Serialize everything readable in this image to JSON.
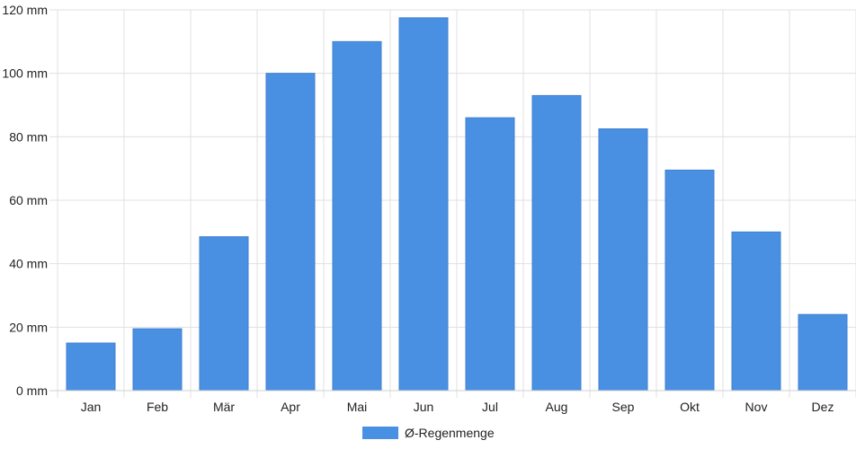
{
  "chart_data": {
    "type": "bar",
    "categories": [
      "Jan",
      "Feb",
      "Mär",
      "Apr",
      "Mai",
      "Jun",
      "Jul",
      "Aug",
      "Sep",
      "Okt",
      "Nov",
      "Dez"
    ],
    "series": [
      {
        "name": "Ø-Regenmenge",
        "values": [
          15,
          19.5,
          48.5,
          100,
          110,
          117.5,
          86,
          93,
          82.5,
          69.5,
          50,
          24
        ],
        "color": "#4a90e2"
      }
    ],
    "ylim": [
      0,
      120
    ],
    "yticks": [
      0,
      20,
      40,
      60,
      80,
      100,
      120
    ],
    "y_unit": " mm",
    "grid": true,
    "legend_position": "bottom-center"
  }
}
